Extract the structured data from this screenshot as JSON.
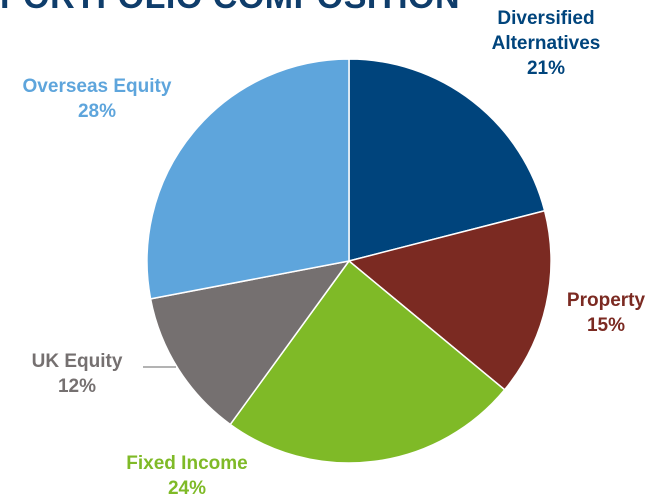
{
  "title": "PORTFOLIO COMPOSITION",
  "chart_data": {
    "type": "pie",
    "title": "PORTFOLIO COMPOSITION",
    "slices": [
      {
        "lines": [
          "Diversified",
          "Alternatives"
        ],
        "label": "Diversified Alternatives",
        "value": 21,
        "value_label": "21%",
        "color": "#00447c"
      },
      {
        "lines": [
          "Property"
        ],
        "label": "Property",
        "value": 15,
        "value_label": "15%",
        "color": "#7b2a22"
      },
      {
        "lines": [
          "Fixed Income"
        ],
        "label": "Fixed Income",
        "value": 24,
        "value_label": "24%",
        "color": "#7fba27"
      },
      {
        "lines": [
          "UK Equity"
        ],
        "label": "UK Equity",
        "value": 12,
        "value_label": "12%",
        "color": "#757070"
      },
      {
        "lines": [
          "Overseas Equity"
        ],
        "label": "Overseas Equity",
        "value": 28,
        "value_label": "28%",
        "color": "#5ea5dc"
      }
    ],
    "start_angle_deg": 0,
    "direction": "clockwise",
    "legend": "none"
  }
}
